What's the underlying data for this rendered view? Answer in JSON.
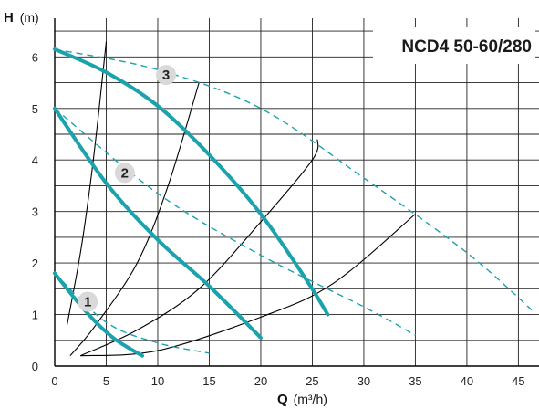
{
  "chart_data": {
    "type": "line",
    "title": "NCD4 50-60/280",
    "ylabel": {
      "symbol": "H",
      "unit": "(m)"
    },
    "xlabel": {
      "symbol": "Q",
      "unit": "(m³/h)"
    },
    "xlim": [
      0,
      47
    ],
    "ylim": [
      0,
      6.75
    ],
    "x_ticks": [
      0,
      5,
      10,
      15,
      20,
      25,
      30,
      35,
      40,
      45
    ],
    "y_ticks": [
      0,
      1,
      2,
      3,
      4,
      5,
      6
    ],
    "grid": true,
    "colors": {
      "pump": "#1aa3ad",
      "dashed": "#1aa3ad",
      "system": "#000000",
      "badge": "#d9d9d9",
      "grid": "#222222"
    },
    "pump_curves": [
      {
        "label": "1",
        "points": [
          [
            0,
            1.8
          ],
          [
            2,
            1.3
          ],
          [
            4,
            0.85
          ],
          [
            6,
            0.5
          ],
          [
            8.5,
            0.2
          ]
        ]
      },
      {
        "label": "2",
        "points": [
          [
            0,
            5.0
          ],
          [
            5,
            3.55
          ],
          [
            10,
            2.45
          ],
          [
            15,
            1.55
          ],
          [
            20,
            0.55
          ]
        ]
      },
      {
        "label": "3",
        "points": [
          [
            0,
            6.15
          ],
          [
            5,
            5.7
          ],
          [
            10,
            5.05
          ],
          [
            15,
            4.1
          ],
          [
            20,
            2.95
          ],
          [
            24.5,
            1.65
          ],
          [
            26.5,
            1.0
          ]
        ]
      }
    ],
    "dashed_curves": [
      {
        "points": [
          [
            0,
            1.8
          ],
          [
            5,
            0.85
          ],
          [
            10,
            0.45
          ],
          [
            15,
            0.25
          ]
        ]
      },
      {
        "points": [
          [
            0,
            5.0
          ],
          [
            10,
            3.35
          ],
          [
            20,
            2.15
          ],
          [
            30,
            1.15
          ],
          [
            35,
            0.6
          ]
        ]
      },
      {
        "points": [
          [
            0,
            6.15
          ],
          [
            10,
            5.75
          ],
          [
            20,
            5.0
          ],
          [
            30,
            3.65
          ],
          [
            40,
            2.2
          ],
          [
            46.5,
            1.05
          ]
        ]
      }
    ],
    "system_curves": [
      {
        "points": [
          [
            1.2,
            0.8
          ],
          [
            2.5,
            2.2
          ],
          [
            3.5,
            3.6
          ],
          [
            4.2,
            4.8
          ],
          [
            5,
            6.3
          ]
        ]
      },
      {
        "points": [
          [
            1.5,
            0.2
          ],
          [
            4,
            0.8
          ],
          [
            8,
            2.0
          ],
          [
            11,
            3.5
          ],
          [
            14,
            5.5
          ]
        ]
      },
      {
        "points": [
          [
            2.5,
            0.2
          ],
          [
            8,
            0.7
          ],
          [
            14,
            1.5
          ],
          [
            20,
            2.8
          ],
          [
            25,
            4.0
          ],
          [
            25.5,
            4.4
          ]
        ]
      },
      {
        "points": [
          [
            2.5,
            0.2
          ],
          [
            10,
            0.3
          ],
          [
            20,
            0.95
          ],
          [
            27,
            1.6
          ],
          [
            35,
            2.95
          ]
        ]
      }
    ],
    "curve_labels": [
      {
        "text": "1",
        "x": 3.2,
        "y": 1.25
      },
      {
        "text": "2",
        "x": 6.8,
        "y": 3.75
      },
      {
        "text": "3",
        "x": 10.8,
        "y": 5.65
      }
    ]
  }
}
